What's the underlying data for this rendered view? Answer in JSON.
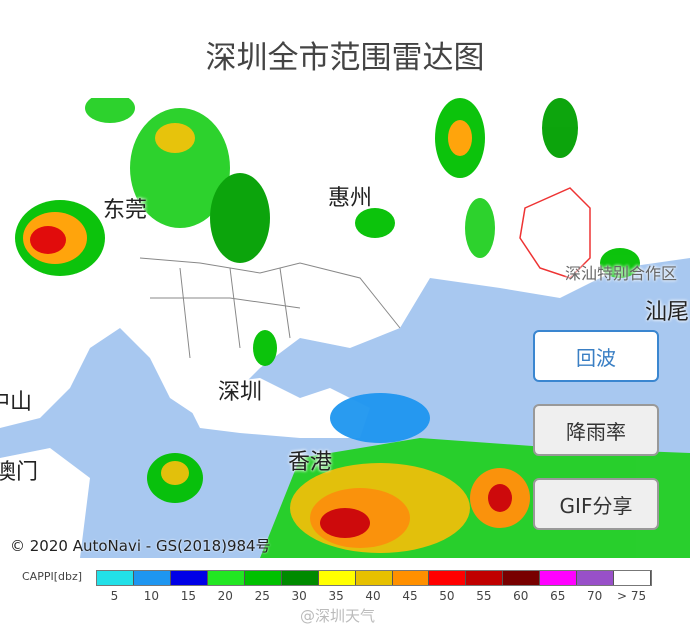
{
  "title": "深圳全市范围雷达图",
  "map": {
    "labels": {
      "dongguan": "东莞",
      "huizhou": "惠州",
      "shenzhen": "深圳",
      "hongkong": "香港",
      "zhongshan": "中山",
      "macau": "澳门",
      "shanwei": "汕尾",
      "shenshan": "深汕特别合作区"
    },
    "copyright": "© 2020 AutoNavi - GS(2018)984号",
    "colors": {
      "sea": "#a8c8f0",
      "land": "#ffffff"
    }
  },
  "buttons": {
    "echo": "回波",
    "rainfall": "降雨率",
    "gif_share": "GIF分享"
  },
  "legend": {
    "label": "CAPPI[dbz]",
    "colors": [
      "#22e0e8",
      "#1e96f0",
      "#0000e6",
      "#22e622",
      "#00c000",
      "#008a00",
      "#ffff00",
      "#e6c000",
      "#ff9000",
      "#ff0000",
      "#c00000",
      "#780000",
      "#ff00ff",
      "#9850c8",
      "#ffffff"
    ],
    "ticks": [
      "5",
      "10",
      "15",
      "20",
      "25",
      "30",
      "35",
      "40",
      "45",
      "50",
      "55",
      "60",
      "65",
      "70",
      "> 75"
    ]
  },
  "watermark": "@深圳天气"
}
